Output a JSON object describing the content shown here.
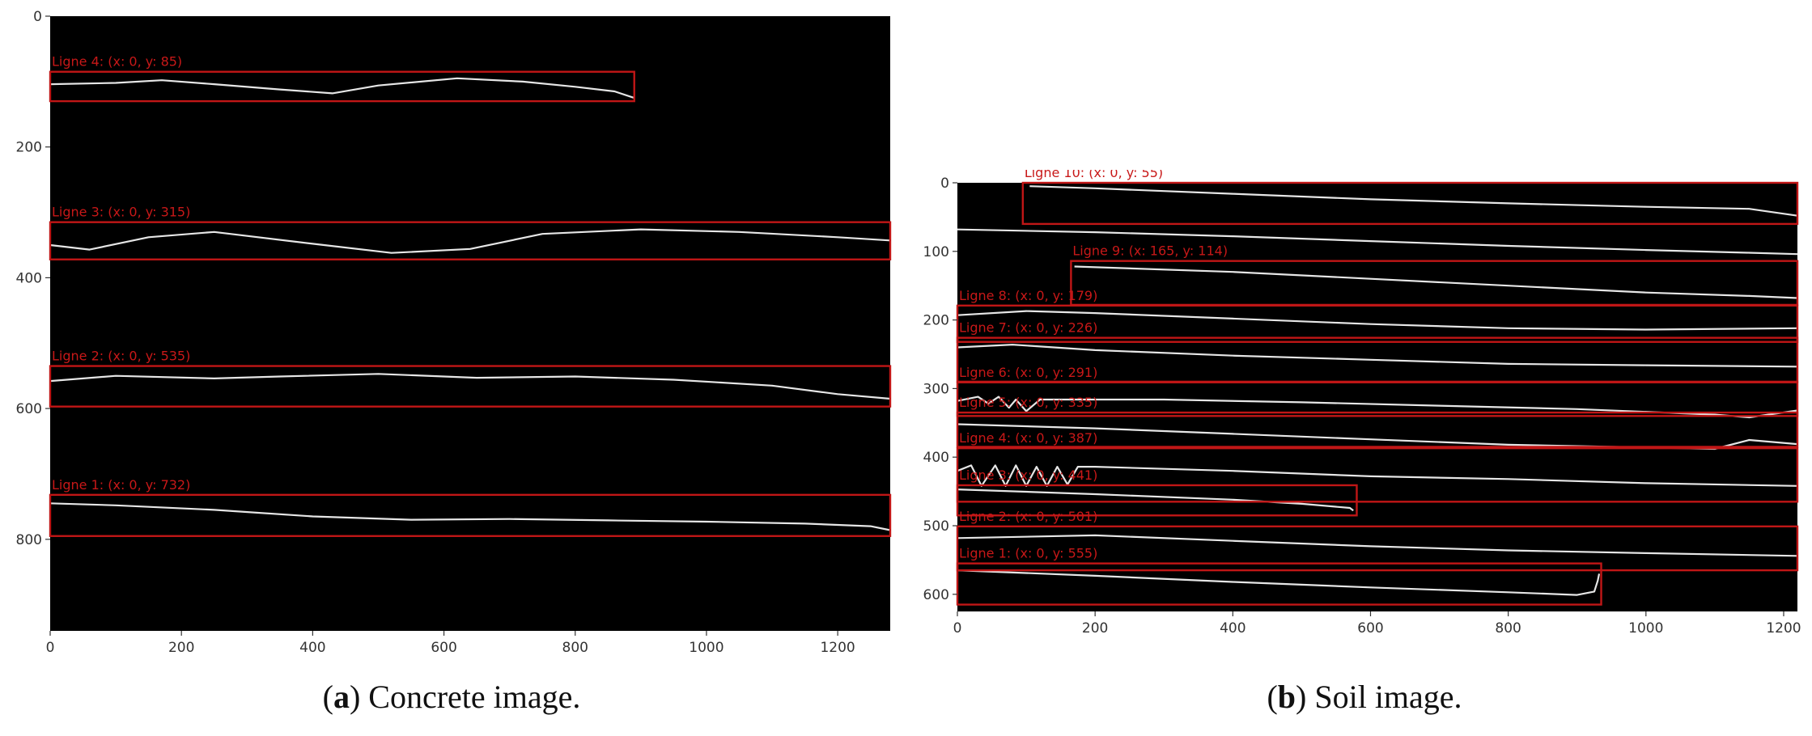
{
  "colors": {
    "plot_bg": "#000000",
    "box": "#c01616",
    "label": "#c81818",
    "curve": "#e6e6e6",
    "axis_text": "#333333"
  },
  "chart_data": [
    {
      "type": "line",
      "panel": "a",
      "caption_letter": "a",
      "caption_text": ") Concrete image.",
      "caption_open": "(",
      "xlim": [
        0,
        1280
      ],
      "ylim": [
        940,
        0
      ],
      "xticks": [
        "0",
        "200",
        "400",
        "600",
        "800",
        "1000",
        "1200"
      ],
      "xtick_values": [
        0,
        200,
        400,
        600,
        800,
        1000,
        1200
      ],
      "yticks": [
        "0",
        "200",
        "400",
        "600",
        "800"
      ],
      "ytick_values": [
        0,
        200,
        400,
        600,
        800
      ],
      "detections": [
        {
          "label": "Ligne 4: (x: 0, y: 85)",
          "x0": 0,
          "x1": 890,
          "y0": 85,
          "y1": 130
        },
        {
          "label": "Ligne 3: (x: 0, y: 315)",
          "x0": 0,
          "x1": 1280,
          "y0": 315,
          "y1": 372
        },
        {
          "label": "Ligne 2: (x: 0, y: 535)",
          "x0": 0,
          "x1": 1280,
          "y0": 535,
          "y1": 597
        },
        {
          "label": "Ligne 1: (x: 0, y: 732)",
          "x0": 0,
          "x1": 1280,
          "y0": 732,
          "y1": 795
        }
      ],
      "series": [
        {
          "x": [
            0,
            100,
            170,
            250,
            350,
            430,
            500,
            620,
            720,
            800,
            860,
            890
          ],
          "y": [
            104,
            102,
            98,
            104,
            112,
            118,
            106,
            95,
            100,
            108,
            115,
            125
          ]
        },
        {
          "x": [
            0,
            60,
            150,
            250,
            400,
            520,
            640,
            750,
            900,
            1050,
            1200,
            1280
          ],
          "y": [
            350,
            357,
            338,
            330,
            348,
            362,
            356,
            333,
            326,
            330,
            338,
            343
          ]
        },
        {
          "x": [
            0,
            100,
            250,
            350,
            500,
            650,
            800,
            950,
            1100,
            1200,
            1280
          ],
          "y": [
            558,
            550,
            554,
            551,
            547,
            553,
            551,
            556,
            565,
            578,
            585
          ]
        },
        {
          "x": [
            0,
            100,
            250,
            400,
            550,
            700,
            850,
            1000,
            1150,
            1250,
            1280
          ],
          "y": [
            745,
            748,
            755,
            765,
            770,
            769,
            771,
            773,
            776,
            780,
            786
          ]
        }
      ]
    },
    {
      "type": "line",
      "panel": "b",
      "caption_letter": "b",
      "caption_text": ") Soil image.",
      "caption_open": "(",
      "xlim": [
        0,
        1220
      ],
      "ylim": [
        625,
        0
      ],
      "xticks": [
        "0",
        "200",
        "400",
        "600",
        "800",
        "1000",
        "1200"
      ],
      "xtick_values": [
        0,
        200,
        400,
        600,
        800,
        1000,
        1200
      ],
      "yticks": [
        "0",
        "100",
        "200",
        "300",
        "400",
        "500",
        "600"
      ],
      "ytick_values": [
        0,
        100,
        200,
        300,
        400,
        500,
        600
      ],
      "detections": [
        {
          "label": "Ligne 10: (x: 0, y: 55)",
          "x0": 95,
          "x1": 1220,
          "y0": 0,
          "y1": 60
        },
        {
          "label": "Ligne 9: (x: 165, y: 114)",
          "x0": 165,
          "x1": 1220,
          "y0": 114,
          "y1": 178
        },
        {
          "label": "Ligne 8: (x: 0, y: 179)",
          "x0": 0,
          "x1": 1220,
          "y0": 179,
          "y1": 232
        },
        {
          "label": "Ligne 7: (x: 0, y: 226)",
          "x0": 0,
          "x1": 1220,
          "y0": 226,
          "y1": 290
        },
        {
          "label": "Ligne 6: (x: 0, y: 291)",
          "x0": 0,
          "x1": 1220,
          "y0": 291,
          "y1": 340
        },
        {
          "label": "Ligne 5: (x: 0, y: 335)",
          "x0": 0,
          "x1": 1220,
          "y0": 335,
          "y1": 385
        },
        {
          "label": "Ligne 4: (x: 0, y: 387)",
          "x0": 0,
          "x1": 1220,
          "y0": 387,
          "y1": 465
        },
        {
          "label": "Ligne 3: (x: 0, y: 441)",
          "x0": 0,
          "x1": 580,
          "y0": 441,
          "y1": 485
        },
        {
          "label": "Ligne 2: (x: 0, y: 501)",
          "x0": 0,
          "x1": 1220,
          "y0": 501,
          "y1": 565
        },
        {
          "label": "Ligne 1: (x: 0, y: 555)",
          "x0": 0,
          "x1": 935,
          "y0": 555,
          "y1": 615
        }
      ],
      "series": [
        {
          "x": [
            105,
            200,
            400,
            600,
            800,
            1000,
            1150,
            1220
          ],
          "y": [
            5,
            8,
            16,
            24,
            30,
            35,
            38,
            48
          ]
        },
        {
          "x": [
            0,
            200,
            400,
            600,
            800,
            1000,
            1150,
            1220
          ],
          "y": [
            68,
            72,
            78,
            85,
            92,
            98,
            102,
            104
          ]
        },
        {
          "x": [
            170,
            400,
            600,
            800,
            1000,
            1150,
            1220
          ],
          "y": [
            122,
            130,
            140,
            150,
            160,
            165,
            168
          ]
        },
        {
          "x": [
            0,
            100,
            200,
            400,
            600,
            800,
            1000,
            1220
          ],
          "y": [
            193,
            187,
            190,
            198,
            206,
            212,
            214,
            212
          ]
        },
        {
          "x": [
            0,
            80,
            200,
            400,
            600,
            800,
            1000,
            1220
          ],
          "y": [
            240,
            236,
            244,
            252,
            258,
            264,
            266,
            268
          ]
        },
        {
          "x": [
            0,
            30,
            45,
            60,
            75,
            85,
            100,
            120,
            300,
            500,
            700,
            900,
            1100,
            1150,
            1220
          ],
          "y": [
            318,
            312,
            322,
            312,
            328,
            316,
            333,
            316,
            316,
            320,
            325,
            330,
            338,
            342,
            332
          ]
        },
        {
          "x": [
            0,
            200,
            400,
            600,
            800,
            1000,
            1100,
            1150,
            1220
          ],
          "y": [
            352,
            358,
            366,
            374,
            382,
            386,
            388,
            375,
            381
          ]
        },
        {
          "x": [
            0,
            20,
            35,
            55,
            70,
            85,
            100,
            115,
            130,
            145,
            160,
            175,
            200,
            400,
            600,
            800,
            1000,
            1220
          ],
          "y": [
            420,
            412,
            442,
            412,
            442,
            412,
            442,
            414,
            442,
            414,
            440,
            414,
            414,
            420,
            428,
            432,
            438,
            442
          ]
        },
        {
          "x": [
            0,
            200,
            400,
            500,
            570,
            575
          ],
          "y": [
            447,
            454,
            462,
            468,
            474,
            478
          ]
        },
        {
          "x": [
            0,
            200,
            400,
            600,
            800,
            1000,
            1220
          ],
          "y": [
            518,
            514,
            522,
            530,
            536,
            540,
            544
          ]
        },
        {
          "x": [
            0,
            200,
            400,
            600,
            800,
            900,
            925,
            930,
            932
          ],
          "y": [
            565,
            573,
            582,
            590,
            597,
            601,
            596,
            580,
            570
          ]
        }
      ]
    }
  ]
}
